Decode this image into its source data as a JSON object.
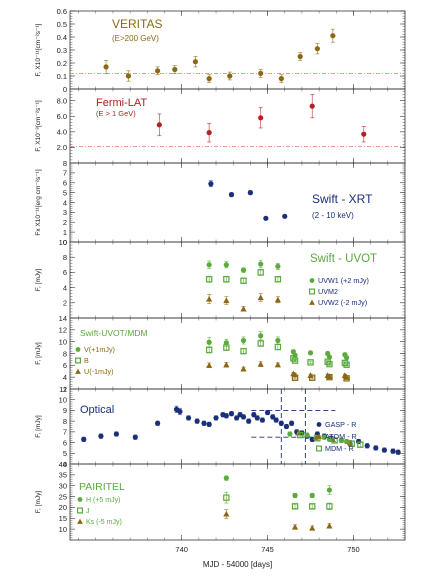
{
  "chart_data": [
    {
      "type": "scatter",
      "name_lines": [
        "VERITAS",
        "(E>200 GeV)"
      ],
      "ylabel": "F, X10⁻¹¹[cm⁻²s⁻¹]",
      "ylim": [
        0,
        0.6
      ],
      "yticks": [
        "0",
        "0.1",
        "0.2",
        "0.3",
        "0.4",
        "0.5",
        "0.6"
      ],
      "reference_line": 0.12,
      "series": [
        {
          "marker": "circle",
          "color": "#8B6914",
          "x": [
            735.6,
            736.9,
            738.6,
            739.6,
            740.8,
            741.6,
            742.8,
            744.6,
            745.8,
            746.9,
            747.9,
            748.8
          ],
          "y": [
            0.17,
            0.1,
            0.14,
            0.15,
            0.21,
            0.08,
            0.1,
            0.12,
            0.08,
            0.25,
            0.31,
            0.41
          ],
          "err": [
            0.05,
            0.04,
            0.03,
            0.03,
            0.04,
            0.03,
            0.03,
            0.03,
            0.03,
            0.03,
            0.04,
            0.05
          ]
        }
      ]
    },
    {
      "type": "scatter",
      "name_lines": [
        "Fermi-LAT",
        "(E > 1 GeV)"
      ],
      "ylabel": "F, X10⁻⁸[cm⁻²s⁻¹]",
      "ylim": [
        0,
        9.5
      ],
      "yticks": [
        "2.0",
        "4.0",
        "6.0",
        "8.0"
      ],
      "ytick_values": [
        2,
        4,
        6,
        8
      ],
      "reference_line": 2.1,
      "series": [
        {
          "marker": "circle",
          "color": "#B22222",
          "x": [
            738.7,
            741.6,
            744.6,
            747.6,
            750.6
          ],
          "y": [
            4.9,
            3.9,
            5.8,
            7.3,
            3.7
          ],
          "err": [
            1.4,
            1.2,
            1.3,
            1.5,
            1.0
          ]
        }
      ]
    },
    {
      "type": "scatter",
      "name_lines": [
        "Swift - XRT",
        "(2 - 10 keV)"
      ],
      "ylabel": "Fx X10⁻¹¹[erg cm⁻²s⁻¹]",
      "ylim": [
        0,
        8
      ],
      "yticks": [
        "0",
        "1",
        "2",
        "3",
        "4",
        "5",
        "6",
        "7",
        "8"
      ],
      "series": [
        {
          "marker": "circle",
          "color": "#1a2f7a",
          "x": [
            741.7,
            742.9,
            744.0,
            744.9,
            746.0
          ],
          "y": [
            5.9,
            4.8,
            5.0,
            2.4,
            2.6
          ],
          "err": [
            0.3,
            0.2,
            0.2,
            0.1,
            0.1
          ]
        }
      ]
    },
    {
      "type": "scatter",
      "name_lines": [
        "Swift - UVOT"
      ],
      "ylabel": "F, [mJy]",
      "ylim": [
        0,
        10
      ],
      "yticks": [
        "2",
        "4",
        "6",
        "8",
        "10"
      ],
      "ytick_values": [
        2,
        4,
        6,
        8,
        10
      ],
      "legend": [
        "UVW1 (+2 mJy)",
        "UVM2",
        "UVW2 (-2 mJy)"
      ],
      "series": [
        {
          "name": "UVW1 (+2 mJy)",
          "marker": "circle",
          "color": "#5aaa3c",
          "x": [
            741.6,
            742.6,
            743.6,
            744.6,
            745.6
          ],
          "y": [
            7.0,
            7.0,
            6.3,
            7.1,
            6.8
          ],
          "err": [
            0.5,
            0.4,
            0.3,
            0.5,
            0.4
          ]
        },
        {
          "name": "UVM2",
          "marker": "square",
          "color": "#5aaa3c",
          "x": [
            741.6,
            742.6,
            743.6,
            744.6,
            745.6
          ],
          "y": [
            5.1,
            5.1,
            4.9,
            6.0,
            5.1
          ],
          "err": [
            0.4,
            0.4,
            0.3,
            0.4,
            0.3
          ]
        },
        {
          "name": "UVW2 (-2 mJy)",
          "marker": "triangle",
          "color": "#8B6914",
          "x": [
            741.6,
            742.6,
            743.6,
            744.6,
            745.6
          ],
          "y": [
            2.5,
            2.3,
            1.2,
            2.7,
            2.4
          ],
          "err": [
            0.6,
            0.5,
            0.3,
            0.5,
            0.4
          ]
        }
      ]
    },
    {
      "type": "scatter",
      "name_lines": [
        "Swift-UVOT/MDM"
      ],
      "ylabel": "F, [mJy]",
      "ylim": [
        2,
        14
      ],
      "yticks": [
        "2",
        "4",
        "6",
        "8",
        "10",
        "12",
        "14"
      ],
      "legend": [
        "V(+1mJy)",
        "B",
        "U(-1mJy)"
      ],
      "series": [
        {
          "name": "V(+1mJy)",
          "marker": "circle",
          "color": "#5aaa3c",
          "x": [
            741.6,
            742.6,
            743.6,
            744.6,
            745.6,
            746.5,
            746.6,
            747.5,
            748.5,
            748.6,
            749.5,
            749.6
          ],
          "y": [
            9.9,
            9.8,
            10.2,
            11.0,
            10.2,
            8.3,
            7.7,
            8.1,
            8.0,
            7.4,
            7.8,
            7.3
          ],
          "err": [
            0.8,
            0.6,
            0.6,
            0.7,
            0.6,
            0.3,
            0.3,
            0.3,
            0.3,
            0.3,
            0.3,
            0.3
          ]
        },
        {
          "name": "B",
          "marker": "square",
          "color": "#5aaa3c",
          "x": [
            741.6,
            742.6,
            743.6,
            744.6,
            745.6,
            746.5,
            746.6,
            747.5,
            748.5,
            748.6,
            749.5,
            749.6
          ],
          "y": [
            8.6,
            9.0,
            8.4,
            9.7,
            9.1,
            7.2,
            6.8,
            6.5,
            6.6,
            6.2,
            6.4,
            6.1
          ],
          "err": [
            0.5,
            0.5,
            0.4,
            0.5,
            0.4,
            0.2,
            0.2,
            0.2,
            0.2,
            0.2,
            0.2,
            0.2
          ]
        },
        {
          "name": "U(-1mJy)",
          "marker": "triangle",
          "color": "#8B6914",
          "x": [
            741.6,
            742.6,
            743.6,
            744.6,
            745.6,
            746.5,
            746.6,
            747.5,
            748.5,
            748.6,
            749.5,
            749.6
          ],
          "y": [
            6.0,
            6.1,
            5.4,
            6.2,
            6.1,
            4.6,
            4.4,
            4.3,
            4.3,
            4.1,
            4.3,
            4.0
          ],
          "err": [
            0.4,
            0.4,
            0.3,
            0.4,
            0.3,
            0.2,
            0.2,
            0.2,
            0.2,
            0.2,
            0.2,
            0.2
          ]
        },
        {
          "marker": "square",
          "color": "#8B6914",
          "x": [
            746.6,
            747.6,
            748.6,
            749.6
          ],
          "y": [
            3.9,
            3.9,
            4.0,
            3.8
          ],
          "err": [
            0.2,
            0.2,
            0.2,
            0.2
          ]
        }
      ]
    },
    {
      "type": "scatter",
      "name_lines": [
        "Optical"
      ],
      "ylabel": "F, [mJy]",
      "ylim": [
        4,
        11
      ],
      "yticks": [
        "4",
        "5",
        "6",
        "7",
        "8",
        "9",
        "10",
        "11"
      ],
      "legend": [
        "GASP - R",
        "ATOM - R",
        "MDM - R"
      ],
      "series": [
        {
          "name": "GASP - R",
          "marker": "circle",
          "color": "#1a2f7a",
          "x": [
            734.3,
            735.3,
            736.2,
            737.3,
            738.6,
            739.7,
            739.9,
            740.4,
            740.9,
            741.3,
            741.6,
            742.0,
            742.4,
            742.6,
            742.9,
            743.2,
            743.4,
            743.6,
            743.9,
            744.2,
            744.4,
            744.7,
            745.0,
            745.3,
            745.5,
            745.8,
            746.1,
            746.4,
            746.7,
            747.0,
            747.3,
            747.6,
            747.9,
            748.3,
            748.7,
            749.3,
            749.8,
            750.3,
            750.8,
            751.3,
            751.8,
            752.3,
            752.6
          ],
          "y": [
            6.3,
            6.6,
            6.8,
            6.5,
            7.8,
            9.1,
            8.9,
            8.3,
            8.0,
            7.8,
            7.7,
            8.3,
            8.6,
            8.5,
            8.7,
            8.3,
            8.6,
            8.4,
            8.0,
            8.6,
            8.3,
            8.1,
            8.8,
            8.4,
            8.1,
            7.8,
            7.5,
            7.8,
            7.0,
            6.9,
            6.6,
            6.3,
            6.8,
            6.6,
            6.4,
            6.2,
            5.9,
            6.1,
            5.7,
            5.5,
            5.3,
            5.2,
            5.1
          ],
          "err": [
            0.2,
            0.2,
            0.2,
            0.2,
            0.2,
            0.3,
            0.3,
            0.2,
            0.2,
            0.2,
            0.2,
            0.2,
            0.2,
            0.2,
            0.2,
            0.2,
            0.2,
            0.2,
            0.2,
            0.2,
            0.2,
            0.2,
            0.2,
            0.2,
            0.2,
            0.2,
            0.2,
            0.2,
            0.2,
            0.2,
            0.2,
            0.2,
            0.2,
            0.2,
            0.2,
            0.2,
            0.2,
            0.2,
            0.2,
            0.2,
            0.2,
            0.2,
            0.2
          ]
        },
        {
          "name": "ATOM - R",
          "marker": "triangle",
          "color": "#8B6914",
          "x": [
            746.8,
            747.8,
            748.8,
            749.8
          ],
          "y": [
            6.9,
            6.5,
            6.3,
            6.0
          ],
          "err": [
            0.2,
            0.2,
            0.2,
            0.2
          ]
        },
        {
          "name": "MDM - R",
          "marker": "square",
          "color": "#5aaa3c",
          "x": [
            746.9,
            747.9,
            748.9,
            749.9,
            750.4
          ],
          "y": [
            6.7,
            6.4,
            6.2,
            5.9,
            5.8
          ],
          "err": [
            0.2,
            0.2,
            0.2,
            0.2,
            0.2
          ]
        },
        {
          "marker": "circle",
          "color": "#5aaa3c",
          "x": [
            746.3,
            747.3,
            748.3,
            748.6,
            749.3,
            749.6
          ],
          "y": [
            6.8,
            6.7,
            6.5,
            6.3,
            6.2,
            6.1
          ],
          "err": [
            0.2,
            0.2,
            0.2,
            0.2,
            0.2,
            0.2
          ]
        }
      ],
      "dashed_box": {
        "x": [
          745.8,
          747.2
        ],
        "y": [
          6.5,
          9.0
        ]
      }
    },
    {
      "type": "scatter",
      "name_lines": [
        "PAIRITEL"
      ],
      "ylabel": "F, [mJy]",
      "ylim": [
        5,
        40
      ],
      "yticks": [
        "10",
        "15",
        "20",
        "25",
        "30",
        "35",
        "40"
      ],
      "ytick_values": [
        10,
        15,
        20,
        25,
        30,
        35,
        40
      ],
      "legend": [
        "H (+5 mJy)",
        "J",
        "Ks (-5 mJy)"
      ],
      "series": [
        {
          "name": "H (+5 mJy)",
          "marker": "circle",
          "color": "#5aaa3c",
          "x": [
            742.6,
            746.6,
            747.6,
            748.6
          ],
          "y": [
            33.5,
            25.5,
            25.5,
            28.0
          ],
          "err": [
            1.0,
            1.0,
            1.0,
            2.0
          ]
        },
        {
          "name": "J",
          "marker": "square",
          "color": "#5aaa3c",
          "x": [
            742.6,
            746.6,
            747.6,
            748.6
          ],
          "y": [
            24.5,
            20.5,
            20.5,
            20.5
          ],
          "err": [
            2.5,
            1.0,
            1.0,
            1.5
          ]
        },
        {
          "name": "Ks (-5 mJy)",
          "marker": "triangle",
          "color": "#8B6914",
          "x": [
            742.6,
            746.6,
            747.6,
            748.6
          ],
          "y": [
            17.0,
            11.0,
            10.5,
            11.5
          ],
          "err": [
            2.0,
            1.0,
            1.0,
            1.0
          ]
        }
      ]
    }
  ],
  "x_axis": {
    "label": "MJD - 54000 [days]",
    "range": [
      733.5,
      753.0
    ],
    "ticks": [
      740,
      745,
      750
    ],
    "tick_labels": [
      "740",
      "745",
      "750"
    ]
  }
}
